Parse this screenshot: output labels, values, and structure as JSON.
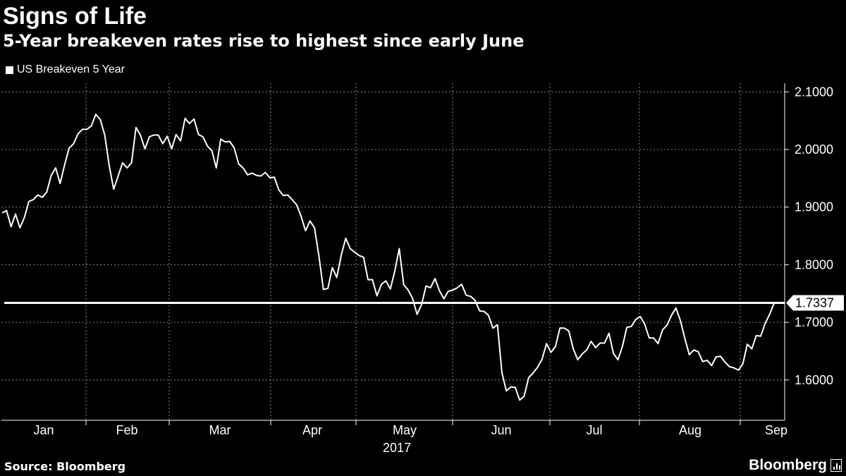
{
  "header": {
    "title": "Signs of Life",
    "subtitle": "5-Year breakeven rates rise to highest since early June"
  },
  "legend": {
    "label": "US Breakeven 5 Year"
  },
  "footer": {
    "source": "Source: Bloomberg",
    "brand": "Bloomberg"
  },
  "colors": {
    "background": "#000000",
    "line": "#ffffff",
    "grid": "#8a8a8a",
    "text": "#ffffff"
  },
  "chart_data": {
    "type": "line",
    "title": "Signs of Life",
    "subtitle": "5-Year breakeven rates rise to highest since early June",
    "xlabel": "2017",
    "ylabel": "",
    "ylim": [
      1.53,
      2.115
    ],
    "y_ticks": [
      "2.1000",
      "2.0000",
      "1.9000",
      "1.8000",
      "1.7000",
      "1.6000"
    ],
    "x_ticks": [
      "Jan",
      "Feb",
      "Mar",
      "Apr",
      "May",
      "Jun",
      "Jul",
      "Aug",
      "Sep"
    ],
    "grid": true,
    "legend_position": "top-left",
    "reference_line": {
      "value": 1.7337,
      "label": "1.7337"
    },
    "series": [
      {
        "name": "US Breakeven 5 Year",
        "values": [
          1.89,
          1.894,
          1.866,
          1.888,
          1.864,
          1.882,
          1.91,
          1.913,
          1.921,
          1.917,
          1.926,
          1.955,
          1.968,
          1.941,
          1.973,
          2.002,
          2.01,
          2.027,
          2.035,
          2.035,
          2.041,
          2.061,
          2.052,
          2.025,
          1.972,
          1.931,
          1.954,
          1.977,
          1.968,
          1.977,
          2.038,
          2.025,
          2.001,
          2.022,
          2.025,
          2.025,
          2.01,
          2.023,
          2.001,
          2.026,
          2.015,
          2.054,
          2.045,
          2.053,
          2.026,
          2.022,
          2.006,
          1.998,
          1.968,
          2.018,
          2.013,
          2.014,
          2.003,
          1.975,
          1.968,
          1.956,
          1.959,
          1.955,
          1.954,
          1.96,
          1.951,
          1.952,
          1.93,
          1.92,
          1.921,
          1.913,
          1.904,
          1.884,
          1.859,
          1.876,
          1.864,
          1.815,
          1.757,
          1.759,
          1.795,
          1.778,
          1.816,
          1.846,
          1.828,
          1.822,
          1.816,
          1.813,
          1.774,
          1.774,
          1.746,
          1.766,
          1.772,
          1.758,
          1.789,
          1.828,
          1.765,
          1.756,
          1.741,
          1.714,
          1.731,
          1.763,
          1.76,
          1.776,
          1.755,
          1.741,
          1.754,
          1.756,
          1.76,
          1.766,
          1.747,
          1.745,
          1.738,
          1.72,
          1.719,
          1.712,
          1.69,
          1.696,
          1.613,
          1.581,
          1.588,
          1.587,
          1.565,
          1.572,
          1.604,
          1.612,
          1.622,
          1.636,
          1.663,
          1.648,
          1.658,
          1.69,
          1.69,
          1.685,
          1.654,
          1.635,
          1.645,
          1.652,
          1.667,
          1.656,
          1.664,
          1.664,
          1.681,
          1.646,
          1.635,
          1.658,
          1.691,
          1.693,
          1.705,
          1.71,
          1.697,
          1.673,
          1.673,
          1.663,
          1.687,
          1.695,
          1.712,
          1.725,
          1.703,
          1.672,
          1.644,
          1.652,
          1.649,
          1.632,
          1.634,
          1.625,
          1.64,
          1.641,
          1.631,
          1.623,
          1.621,
          1.617,
          1.628,
          1.662,
          1.654,
          1.677,
          1.676,
          1.698,
          1.714,
          1.7337
        ]
      }
    ]
  }
}
